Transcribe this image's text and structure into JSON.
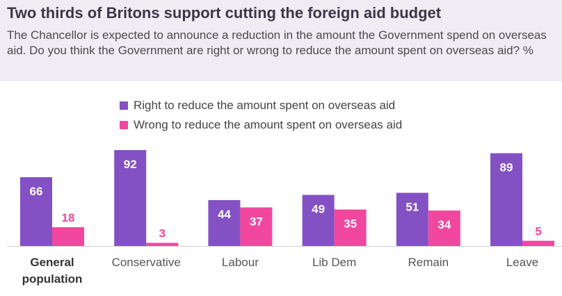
{
  "header": {
    "title": "Two thirds of Britons support cutting the foreign aid budget",
    "subtitle": "The Chancellor is expected to announce a reduction in the amount the Government spend on overseas aid. Do you think the Government are right or wrong to reduce the amount spent on overseas aid? %"
  },
  "colors": {
    "right": "#8351c4",
    "wrong": "#f2479e",
    "header_bg": "#efecf4"
  },
  "chart_data": {
    "type": "bar",
    "categories": [
      "General population",
      "Conservative",
      "Labour",
      "Lib Dem",
      "Remain",
      "Leave"
    ],
    "category_lines": [
      [
        "General",
        "population"
      ],
      [
        "Conservative"
      ],
      [
        "Labour"
      ],
      [
        "Lib Dem"
      ],
      [
        "Remain"
      ],
      [
        "Leave"
      ]
    ],
    "series": [
      {
        "name": "Right to reduce the amount spent on overseas aid",
        "values": [
          66,
          92,
          44,
          49,
          51,
          89
        ]
      },
      {
        "name": "Wrong to reduce the amount spent on overseas aid",
        "values": [
          18,
          3,
          37,
          35,
          34,
          5
        ]
      }
    ],
    "ylim": [
      0,
      100
    ],
    "legend_position": "top",
    "grid": false
  }
}
